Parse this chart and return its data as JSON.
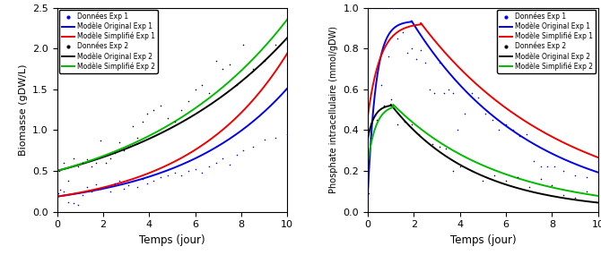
{
  "left_panel": {
    "ylabel": "Biomasse (gDW/L)",
    "xlabel": "Temps (jour)",
    "xlim": [
      0,
      10
    ],
    "ylim": [
      0,
      2.5
    ],
    "yticks": [
      0,
      0.5,
      1.0,
      1.5,
      2.0,
      2.5
    ],
    "xticks": [
      0,
      2,
      4,
      6,
      8,
      10
    ],
    "exp1_data_x": [
      0.05,
      0.15,
      0.3,
      0.5,
      0.7,
      0.9,
      1.1,
      1.3,
      1.5,
      1.7,
      1.9,
      2.1,
      2.3,
      2.5,
      2.7,
      2.9,
      3.1,
      3.3,
      3.5,
      3.7,
      3.9,
      4.2,
      4.5,
      4.8,
      5.1,
      5.4,
      5.7,
      6.0,
      6.3,
      6.6,
      6.9,
      7.2,
      7.5,
      7.8,
      8.1,
      8.5,
      9.0,
      9.5,
      10.0
    ],
    "exp1_data_y": [
      0.22,
      0.27,
      0.25,
      0.12,
      0.1,
      0.08,
      0.2,
      0.3,
      0.25,
      0.33,
      0.28,
      0.3,
      0.25,
      0.35,
      0.38,
      0.28,
      0.32,
      0.38,
      0.3,
      0.4,
      0.35,
      0.38,
      0.42,
      0.45,
      0.48,
      0.45,
      0.5,
      0.52,
      0.48,
      0.55,
      0.6,
      0.65,
      0.58,
      0.7,
      0.75,
      0.8,
      0.88,
      0.9,
      0.95
    ],
    "exp2_data_x": [
      0.1,
      0.3,
      0.5,
      0.7,
      0.9,
      1.1,
      1.3,
      1.5,
      1.7,
      1.9,
      2.1,
      2.3,
      2.5,
      2.7,
      2.9,
      3.1,
      3.3,
      3.5,
      3.7,
      3.9,
      4.2,
      4.5,
      4.8,
      5.1,
      5.4,
      5.7,
      6.0,
      6.3,
      6.6,
      6.9,
      7.2,
      7.5,
      7.8,
      8.1,
      8.5,
      9.0,
      9.5,
      10.0
    ],
    "exp2_data_y": [
      0.5,
      0.6,
      0.38,
      0.65,
      0.55,
      0.6,
      0.64,
      0.55,
      0.6,
      0.87,
      0.6,
      0.65,
      0.72,
      0.85,
      0.75,
      0.8,
      1.05,
      0.9,
      1.1,
      1.2,
      1.25,
      1.3,
      1.15,
      1.1,
      1.25,
      1.35,
      1.5,
      1.55,
      1.45,
      1.85,
      1.75,
      1.8,
      1.55,
      2.05,
      1.75,
      1.85,
      2.05,
      2.1
    ],
    "bio_orig_exp1": {
      "a": 0.185,
      "b": 0.21
    },
    "bio_simp_exp1": {
      "a": 0.185,
      "b": 0.235
    },
    "bio_orig_exp2": {
      "a": 0.5,
      "b": 0.145
    },
    "bio_simp_exp2": {
      "a": 0.5,
      "b": 0.155
    }
  },
  "right_panel": {
    "ylabel": "Phosphate intracellulaire (mmol/gDW)",
    "xlabel": "Temps (jour)",
    "xlim": [
      0,
      10
    ],
    "ylim": [
      0,
      1.0
    ],
    "yticks": [
      0,
      0.2,
      0.4,
      0.6,
      0.8,
      1.0
    ],
    "xticks": [
      0,
      2,
      4,
      6,
      8,
      10
    ],
    "exp1_data_x": [
      0.05,
      0.3,
      0.6,
      0.9,
      1.1,
      1.3,
      1.5,
      1.7,
      1.9,
      2.1,
      2.3,
      2.5,
      2.7,
      2.9,
      3.1,
      3.3,
      3.5,
      3.7,
      3.9,
      4.2,
      4.5,
      4.8,
      5.1,
      5.4,
      5.7,
      6.0,
      6.3,
      6.6,
      6.9,
      7.2,
      7.5,
      7.8,
      8.1,
      8.5,
      9.0,
      9.5,
      10.0
    ],
    "exp1_data_y": [
      0.09,
      0.47,
      0.62,
      0.76,
      1.0,
      0.85,
      0.88,
      0.78,
      0.8,
      0.75,
      0.79,
      0.73,
      0.6,
      0.58,
      0.73,
      0.58,
      0.6,
      0.58,
      0.4,
      0.48,
      0.58,
      0.56,
      0.48,
      0.45,
      0.4,
      0.43,
      0.4,
      0.37,
      0.38,
      0.25,
      0.22,
      0.22,
      0.22,
      0.2,
      0.18,
      0.17,
      0.25
    ],
    "exp2_data_x": [
      0.1,
      0.4,
      0.7,
      1.0,
      1.3,
      1.6,
      1.9,
      2.2,
      2.5,
      2.8,
      3.1,
      3.4,
      3.7,
      4.0,
      4.5,
      5.0,
      5.5,
      6.0,
      6.5,
      7.0,
      7.5,
      8.0,
      8.5,
      9.0,
      9.5,
      10.0
    ],
    "exp2_data_y": [
      0.36,
      0.45,
      0.52,
      0.55,
      0.43,
      0.44,
      0.43,
      0.38,
      0.35,
      0.33,
      0.32,
      0.31,
      0.2,
      0.22,
      0.2,
      0.15,
      0.18,
      0.15,
      0.17,
      0.12,
      0.16,
      0.13,
      0.08,
      0.07,
      0.1,
      0.1
    ],
    "phos_orig_exp1": {
      "start": 0.09,
      "peak": 0.935,
      "peak_t": 1.9,
      "rise_k": 2.8,
      "decay_k": 0.195
    },
    "phos_simp_exp1": {
      "start": 0.47,
      "peak": 0.925,
      "peak_t": 2.3,
      "rise_k": 1.8,
      "decay_k": 0.162
    },
    "phos_orig_exp2": {
      "start": 0.36,
      "peak": 0.525,
      "peak_t": 1.0,
      "rise_k": 3.5,
      "decay_k": 0.275
    },
    "phos_simp_exp2": {
      "start": 0.24,
      "peak": 0.525,
      "peak_t": 1.1,
      "rise_k": 2.8,
      "decay_k": 0.215
    }
  },
  "colors": {
    "blue": "#0000EE",
    "red": "#EE0000",
    "black": "#000000",
    "green": "#00BB00"
  },
  "legend_labels": {
    "data1": "Données Exp 1",
    "model_orig1": "Modèle Original Exp 1",
    "model_simp1": "Modèle Simplifié Exp 1",
    "data2": "Données Exp 2",
    "model_orig2": "Modèle Original Exp 2",
    "model_simp2": "Modèle Simplifié Exp 2"
  }
}
